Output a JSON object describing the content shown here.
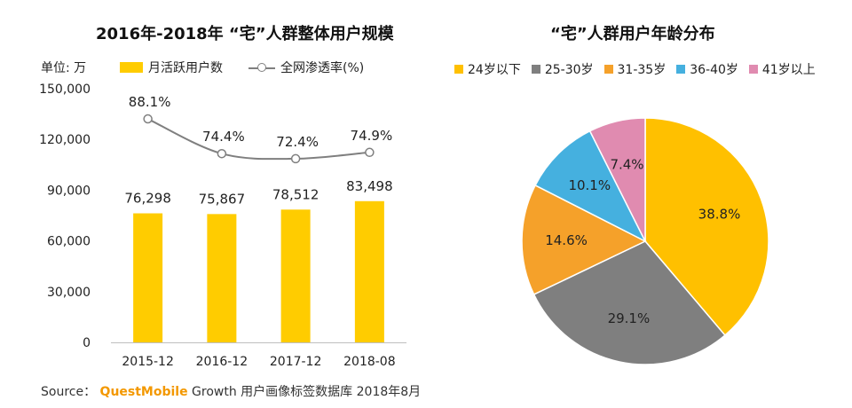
{
  "left_title": "2016年-2018年 “宅”人群整体用户规模",
  "right_title": "“宅”人群用户年龄分布",
  "unit_label": "单位: 万",
  "legend_bar": "月活跃用户数",
  "legend_line": "全网渗透率(%)",
  "source": {
    "prefix": "Source：",
    "brand": "QuestMobile",
    "suffix": " Growth 用户画像标签数据库 2018年8月"
  },
  "chart_data": [
    {
      "type": "bar",
      "title": "2016年-2018年 “宅”人群整体用户规模",
      "categories": [
        "2015-12",
        "2016-12",
        "2017-12",
        "2018-08"
      ],
      "series": [
        {
          "name": "月活跃用户数",
          "type": "bar",
          "values": [
            76298,
            75867,
            78512,
            83498
          ],
          "labels": [
            "76,298",
            "75,867",
            "78,512",
            "83,498"
          ],
          "color": "#FFCC00"
        },
        {
          "name": "全网渗透率(%)",
          "type": "line",
          "values": [
            88.1,
            74.4,
            72.4,
            74.9
          ],
          "labels": [
            "88.1%",
            "74.4%",
            "72.4%",
            "74.9%"
          ],
          "color": "#7F7F7F"
        }
      ],
      "ylim": [
        0,
        150000
      ],
      "yticks": [
        0,
        30000,
        60000,
        90000,
        120000,
        150000
      ],
      "ytick_labels": [
        "0",
        "30,000",
        "60,000",
        "90,000",
        "120,000",
        "150,000"
      ],
      "line_scale": {
        "min": 0,
        "max": 100
      },
      "grid": false,
      "legend_position": "top"
    },
    {
      "type": "pie",
      "title": "“宅”人群用户年龄分布",
      "slices": [
        {
          "label": "24岁以下",
          "value": 38.8,
          "text": "38.8%",
          "color": "#FFC000"
        },
        {
          "label": "25-30岁",
          "value": 29.1,
          "text": "29.1%",
          "color": "#7F7F7F"
        },
        {
          "label": "31-35岁",
          "value": 14.6,
          "text": "14.6%",
          "color": "#F5A12A"
        },
        {
          "label": "36-40岁",
          "value": 10.1,
          "text": "10.1%",
          "color": "#45B0DF"
        },
        {
          "label": "41岁以上",
          "value": 7.4,
          "text": "7.4%",
          "color": "#E08BB0"
        }
      ],
      "legend_position": "top"
    }
  ]
}
